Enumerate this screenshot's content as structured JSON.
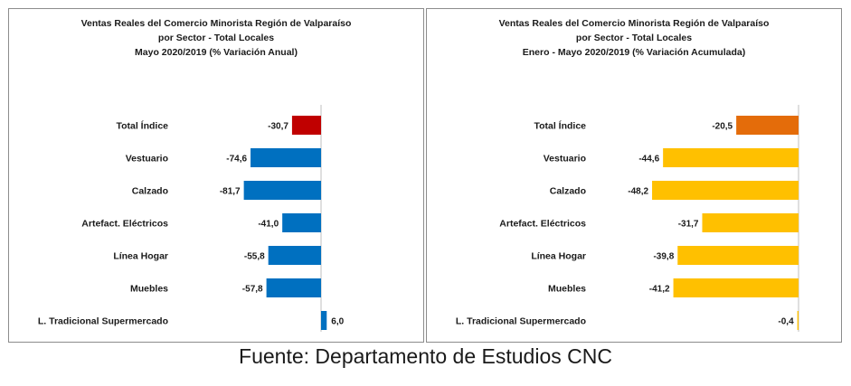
{
  "chart_data": [
    {
      "type": "bar",
      "orientation": "horizontal",
      "title_lines": [
        "Ventas Reales del Comercio Minorista Región de Valparaíso",
        "por Sector - Total Locales",
        "Mayo 2020/2019 (% Variación Anual)"
      ],
      "categories": [
        "Total Índice",
        "Vestuario",
        "Calzado",
        "Artefact. Eléctricos",
        "Línea Hogar",
        "Muebles",
        "L. Tradicional Supermercado"
      ],
      "values": [
        -30.7,
        -74.6,
        -81.7,
        -41.0,
        -55.8,
        -57.8,
        6.0
      ],
      "value_labels": [
        "-30,7",
        "-74,6",
        "-81,7",
        "-41,0",
        "-55,8",
        "-57,8",
        "6,0"
      ],
      "bar_colors": [
        "#c00000",
        "#0070c0",
        "#0070c0",
        "#0070c0",
        "#0070c0",
        "#0070c0",
        "#0070c0"
      ],
      "xlim": [
        -100,
        10
      ]
    },
    {
      "type": "bar",
      "orientation": "horizontal",
      "title_lines": [
        "Ventas Reales del Comercio Minorista Región de Valparaíso",
        "por Sector  - Total Locales",
        "Enero - Mayo  2020/2019 (% Variación Acumulada)"
      ],
      "categories": [
        "Total Índice",
        "Vestuario",
        "Calzado",
        "Artefact. Eléctricos",
        "Línea Hogar",
        "Muebles",
        "L. Tradicional Supermercado"
      ],
      "values": [
        -20.5,
        -44.6,
        -48.2,
        -31.7,
        -39.8,
        -41.2,
        -0.4
      ],
      "value_labels": [
        "-20,5",
        "-44,6",
        "-48,2",
        "-31,7",
        "-39,8",
        "-41,2",
        "-0,4"
      ],
      "bar_colors": [
        "#e46c0a",
        "#ffc000",
        "#ffc000",
        "#ffc000",
        "#ffc000",
        "#ffc000",
        "#ffc000"
      ],
      "xlim": [
        -60,
        0
      ]
    }
  ],
  "footer": {
    "source": "Fuente: Departamento de Estudios CNC"
  }
}
